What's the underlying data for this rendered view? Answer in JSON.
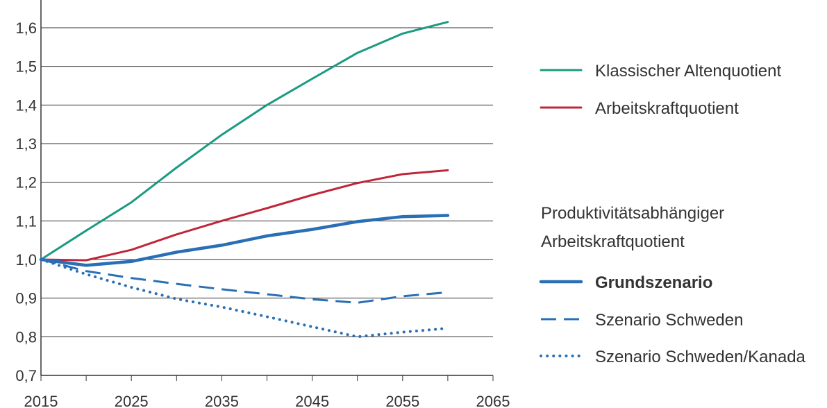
{
  "chart_data": {
    "type": "line",
    "x": [
      2015,
      2020,
      2025,
      2030,
      2035,
      2040,
      2045,
      2050,
      2055,
      2060
    ],
    "xlim": [
      2015,
      2065
    ],
    "ylim": [
      0.7,
      1.6
    ],
    "x_ticks": [
      2015,
      2025,
      2035,
      2045,
      2055,
      2065
    ],
    "y_ticks": [
      "0,7",
      "0,8",
      "0,9",
      "1,0",
      "1,1",
      "1,2",
      "1,3",
      "1,4",
      "1,5",
      "1,6"
    ],
    "y_tick_values": [
      0.7,
      0.8,
      0.9,
      1.0,
      1.1,
      1.2,
      1.3,
      1.4,
      1.5,
      1.6
    ],
    "grid": "horizontal",
    "legend_position": "right",
    "legend_group_title": [
      "Produktivitätsabhängiger",
      "Arbeitskraftquotient"
    ],
    "series": [
      {
        "name": "Klassischer Altenquotient",
        "color": "#1a9a82",
        "style": "solid",
        "values": [
          1.0,
          1.075,
          1.148,
          1.238,
          1.323,
          1.4,
          1.468,
          1.535,
          1.585,
          1.615
        ]
      },
      {
        "name": "Arbeitskraftquotient",
        "color": "#c0263a",
        "style": "solid",
        "values": [
          1.0,
          0.998,
          1.025,
          1.065,
          1.1,
          1.133,
          1.167,
          1.198,
          1.221,
          1.231
        ]
      },
      {
        "name": "Grundszenario",
        "color": "#2a6fb5",
        "style": "bold",
        "values": [
          1.0,
          0.985,
          0.995,
          1.019,
          1.037,
          1.061,
          1.078,
          1.098,
          1.111,
          1.114
        ]
      },
      {
        "name": "Szenario Schweden",
        "color": "#2a6fb5",
        "style": "dashed",
        "values": [
          1.0,
          0.97,
          0.952,
          0.937,
          0.923,
          0.91,
          0.897,
          0.888,
          0.905,
          0.915
        ]
      },
      {
        "name": "Szenario Schweden/Kanada",
        "color": "#2a6fb5",
        "style": "dotted",
        "values": [
          1.0,
          0.962,
          0.928,
          0.898,
          0.877,
          0.852,
          0.826,
          0.8,
          0.812,
          0.822
        ]
      }
    ]
  }
}
